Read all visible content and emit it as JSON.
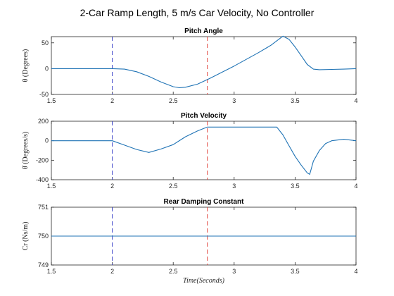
{
  "figure_title": "2-Car Ramp Length,  5 m/s Car Velocity,  No Controller",
  "chart_data": [
    {
      "type": "line",
      "title": "Pitch Angle",
      "ylabel": "θ (Degrees)",
      "xlabel": "",
      "xlim": [
        1.5,
        4
      ],
      "ylim": [
        -50,
        62
      ],
      "xticks": [
        "1.5",
        "2",
        "2.5",
        "3",
        "3.5",
        "4"
      ],
      "yticks": [
        {
          "v": -50,
          "label": "-50"
        },
        {
          "v": 0,
          "label": "0"
        },
        {
          "v": 50,
          "label": "50"
        }
      ],
      "vlines": [
        {
          "x": 2.0,
          "color": "#3d45c9"
        },
        {
          "x": 2.78,
          "color": "#e0443d"
        }
      ],
      "series": [
        {
          "color": "#1f73b5",
          "points": [
            [
              1.5,
              0
            ],
            [
              2.0,
              0
            ],
            [
              2.1,
              -1
            ],
            [
              2.2,
              -6
            ],
            [
              2.3,
              -15
            ],
            [
              2.4,
              -26
            ],
            [
              2.5,
              -35
            ],
            [
              2.55,
              -37
            ],
            [
              2.6,
              -36
            ],
            [
              2.7,
              -30
            ],
            [
              2.8,
              -19
            ],
            [
              3.0,
              5
            ],
            [
              3.2,
              31
            ],
            [
              3.3,
              45
            ],
            [
              3.4,
              63
            ],
            [
              3.45,
              57
            ],
            [
              3.5,
              42
            ],
            [
              3.55,
              25
            ],
            [
              3.6,
              8
            ],
            [
              3.65,
              -1
            ],
            [
              3.7,
              -2
            ],
            [
              3.8,
              -1.5
            ],
            [
              3.9,
              -1
            ],
            [
              4.0,
              0
            ]
          ]
        }
      ]
    },
    {
      "type": "line",
      "title": "Pitch Velocity",
      "ylabel": "θ̇ (Degrees/s)",
      "xlabel": "",
      "xlim": [
        1.5,
        4
      ],
      "ylim": [
        -400,
        200
      ],
      "xticks": [
        "1.5",
        "2",
        "2.5",
        "3",
        "3.5",
        "4"
      ],
      "yticks": [
        {
          "v": -400,
          "label": "-400"
        },
        {
          "v": -200,
          "label": "-200"
        },
        {
          "v": 0,
          "label": "0"
        },
        {
          "v": 200,
          "label": "200"
        }
      ],
      "vlines": [
        {
          "x": 2.0,
          "color": "#3d45c9"
        },
        {
          "x": 2.78,
          "color": "#e0443d"
        }
      ],
      "series": [
        {
          "color": "#1f73b5",
          "points": [
            [
              1.5,
              0
            ],
            [
              2.0,
              0
            ],
            [
              2.1,
              -45
            ],
            [
              2.2,
              -90
            ],
            [
              2.3,
              -120
            ],
            [
              2.4,
              -85
            ],
            [
              2.5,
              -40
            ],
            [
              2.6,
              40
            ],
            [
              2.7,
              100
            ],
            [
              2.78,
              140
            ],
            [
              3.0,
              140
            ],
            [
              3.35,
              140
            ],
            [
              3.4,
              60
            ],
            [
              3.45,
              -50
            ],
            [
              3.5,
              -160
            ],
            [
              3.55,
              -250
            ],
            [
              3.6,
              -330
            ],
            [
              3.62,
              -345
            ],
            [
              3.65,
              -210
            ],
            [
              3.7,
              -100
            ],
            [
              3.75,
              -30
            ],
            [
              3.8,
              0
            ],
            [
              3.9,
              15
            ],
            [
              4.0,
              0
            ]
          ]
        }
      ]
    },
    {
      "type": "line",
      "title": "Rear Damping Constant",
      "ylabel": "Cr (Ns/m)",
      "xlabel": "Time(Seconds)",
      "xlim": [
        1.5,
        4
      ],
      "ylim": [
        749,
        751
      ],
      "xticks": [
        "1.5",
        "2",
        "2.5",
        "3",
        "3.5",
        "4"
      ],
      "yticks": [
        {
          "v": 749,
          "label": "749"
        },
        {
          "v": 750,
          "label": "750"
        },
        {
          "v": 751,
          "label": "751"
        }
      ],
      "vlines": [
        {
          "x": 2.0,
          "color": "#3d45c9"
        },
        {
          "x": 2.78,
          "color": "#e0443d"
        }
      ],
      "series": [
        {
          "color": "#1f73b5",
          "points": [
            [
              1.5,
              750
            ],
            [
              4.0,
              750
            ]
          ]
        }
      ]
    }
  ]
}
